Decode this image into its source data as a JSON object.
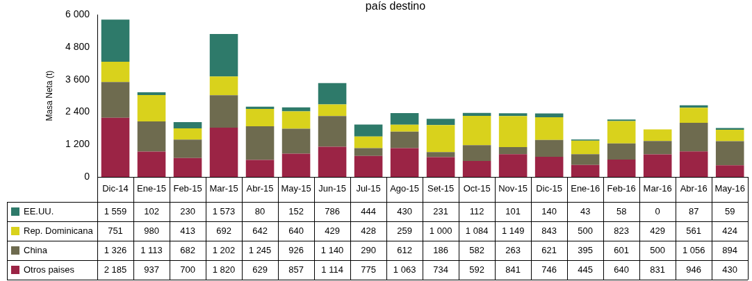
{
  "chart_data": {
    "type": "bar",
    "title": "país destino",
    "ylabel": "Masa Neta (t)",
    "stacked": true,
    "legend": "bottom",
    "categories": [
      "Dic-14",
      "Ene-15",
      "Feb-15",
      "Mar-15",
      "Abr-15",
      "May-15",
      "Jun-15",
      "Jul-15",
      "Ago-15",
      "Set-15",
      "Oct-15",
      "Nov-15",
      "Dic-15",
      "Ene-16",
      "Feb-16",
      "Mar-16",
      "Abr-16",
      "May-16"
    ],
    "ylim": [
      0,
      6000
    ],
    "yticks": [
      0,
      {
        "value": 1200,
        "label": "1 200"
      },
      {
        "value": 2400,
        "label": "2 400"
      },
      {
        "value": 3600,
        "label": "3 600"
      },
      {
        "value": 4800,
        "label": "4 800"
      },
      {
        "value": 6000,
        "label": "6 000"
      }
    ],
    "series": [
      {
        "name": "Otros paises",
        "color": "#9b2445",
        "values": [
          2185,
          937,
          700,
          1820,
          629,
          857,
          1114,
          775,
          1063,
          734,
          592,
          841,
          746,
          445,
          640,
          831,
          946,
          430
        ],
        "value_labels": [
          "2 185",
          "937",
          "700",
          "1 820",
          "629",
          "857",
          "1 114",
          "775",
          "1 063",
          "734",
          "592",
          "841",
          "746",
          "445",
          "640",
          "831",
          "946",
          "430"
        ]
      },
      {
        "name": "China",
        "color": "#6e6b4f",
        "values": [
          1326,
          1113,
          682,
          1202,
          1245,
          926,
          1140,
          290,
          612,
          186,
          582,
          263,
          621,
          395,
          601,
          500,
          1056,
          894
        ],
        "value_labels": [
          "1 326",
          "1 113",
          "682",
          "1 202",
          "1 245",
          "926",
          "1 140",
          "290",
          "612",
          "186",
          "582",
          "263",
          "621",
          "395",
          "601",
          "500",
          "1 056",
          "894"
        ]
      },
      {
        "name": "Rep. Dominicana",
        "color": "#d9d21c",
        "values": [
          751,
          980,
          413,
          692,
          642,
          640,
          429,
          428,
          259,
          1000,
          1084,
          1149,
          843,
          500,
          823,
          429,
          561,
          424
        ],
        "value_labels": [
          "751",
          "980",
          "413",
          "692",
          "642",
          "640",
          "429",
          "428",
          "259",
          "1 000",
          "1 084",
          "1 149",
          "843",
          "500",
          "823",
          "429",
          "561",
          "424"
        ]
      },
      {
        "name": "EE.UU.",
        "color": "#2e7a6a",
        "values": [
          1559,
          102,
          230,
          1573,
          80,
          152,
          786,
          444,
          430,
          231,
          112,
          101,
          140,
          43,
          58,
          0,
          87,
          59
        ],
        "value_labels": [
          "1 559",
          "102",
          "230",
          "1 573",
          "80",
          "152",
          "786",
          "444",
          "430",
          "231",
          "112",
          "101",
          "140",
          "43",
          "58",
          "0",
          "87",
          "59"
        ]
      }
    ]
  }
}
